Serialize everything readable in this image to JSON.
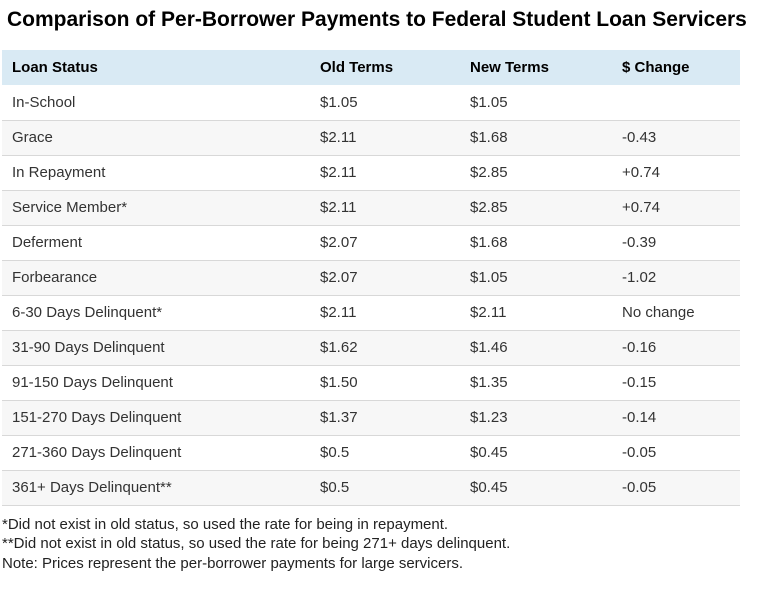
{
  "page": {
    "title": "Comparison of Per-Borrower Payments to Federal Student Loan Servicers"
  },
  "chart_data": {
    "type": "table",
    "title": "Comparison of Per-Borrower Payments to Federal Student Loan Servicers",
    "columns": [
      "Loan Status",
      "Old Terms",
      "New Terms",
      "$ Change"
    ],
    "rows": [
      [
        "In-School",
        "$1.05",
        "$1.05",
        ""
      ],
      [
        "Grace",
        "$2.11",
        "$1.68",
        "-0.43"
      ],
      [
        "In Repayment",
        "$2.11",
        "$2.85",
        "+0.74"
      ],
      [
        "Service Member*",
        "$2.11",
        "$2.85",
        "+0.74"
      ],
      [
        "Deferment",
        "$2.07",
        "$1.68",
        "-0.39"
      ],
      [
        "Forbearance",
        "$2.07",
        "$1.05",
        "-1.02"
      ],
      [
        "6-30 Days Delinquent*",
        "$2.11",
        "$2.11",
        "No change"
      ],
      [
        "31-90 Days Delinquent",
        "$1.62",
        "$1.46",
        "-0.16"
      ],
      [
        "91-150 Days Delinquent",
        "$1.50",
        "$1.35",
        "-0.15"
      ],
      [
        "151-270 Days Delinquent",
        "$1.37",
        "$1.23",
        "-0.14"
      ],
      [
        "271-360 Days Delinquent",
        "$0.5",
        "$0.45",
        "-0.05"
      ],
      [
        "361+ Days Delinquent**",
        "$0.5",
        "$0.45",
        "-0.05"
      ]
    ]
  },
  "footnotes": [
    "*Did not exist in old status, so used the rate for being in repayment.",
    "**Did not exist in old status, so used the rate for being 271+ days delinquent.",
    "Note: Prices represent the per-borrower payments for large servicers."
  ],
  "colors": {
    "header_bg": "#d9eaf4",
    "row_stripe_bg": "#f7f7f7",
    "row_border": "#d8d8d8",
    "title_text": "#000000",
    "body_text": "#333333",
    "footnote_text": "#222222"
  }
}
